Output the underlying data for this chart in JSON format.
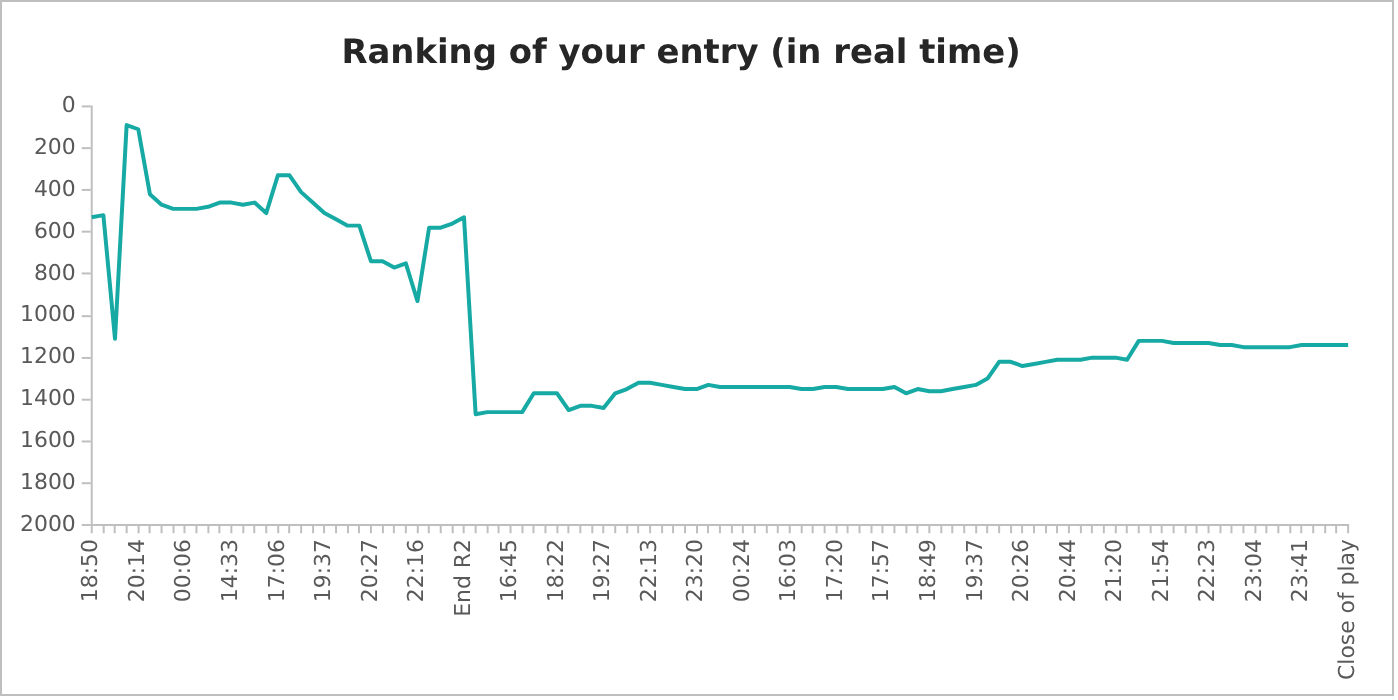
{
  "chart_data": {
    "type": "line",
    "title": "Ranking of your entry (in real time)",
    "categories": [
      "18:50",
      null,
      null,
      null,
      "20:14",
      null,
      null,
      null,
      "00:06",
      null,
      null,
      null,
      "14:33",
      null,
      null,
      null,
      "17:06",
      null,
      null,
      null,
      "19:37",
      null,
      null,
      null,
      "20:27",
      null,
      null,
      null,
      "22:16",
      null,
      null,
      null,
      "End R2",
      null,
      null,
      null,
      "16:45",
      null,
      null,
      null,
      "18:22",
      null,
      null,
      null,
      "19:27",
      null,
      null,
      null,
      "22:13",
      null,
      null,
      null,
      "23:20",
      null,
      null,
      null,
      "00:24",
      null,
      null,
      null,
      "16:03",
      null,
      null,
      null,
      "17:20",
      null,
      null,
      null,
      "17:57",
      null,
      null,
      null,
      "18:49",
      null,
      null,
      null,
      "19:37",
      null,
      null,
      null,
      "20:26",
      null,
      null,
      null,
      "20:44",
      null,
      null,
      null,
      "21:20",
      null,
      null,
      null,
      "21:54",
      null,
      null,
      null,
      "22:23",
      null,
      null,
      null,
      "23:04",
      null,
      null,
      null,
      "23:41",
      null,
      null,
      null,
      "Close of play"
    ],
    "series": [
      {
        "color": "#17aaa5",
        "values": [
          530,
          520,
          1110,
          90,
          110,
          420,
          470,
          490,
          490,
          490,
          480,
          460,
          460,
          470,
          460,
          510,
          330,
          330,
          410,
          460,
          510,
          540,
          570,
          570,
          740,
          740,
          770,
          750,
          930,
          580,
          580,
          560,
          530,
          1470,
          1460,
          1460,
          1460,
          1460,
          1370,
          1370,
          1370,
          1450,
          1430,
          1430,
          1440,
          1370,
          1350,
          1320,
          1320,
          1330,
          1340,
          1350,
          1350,
          1330,
          1340,
          1340,
          1340,
          1340,
          1340,
          1340,
          1340,
          1350,
          1350,
          1340,
          1340,
          1350,
          1350,
          1350,
          1350,
          1340,
          1370,
          1350,
          1360,
          1360,
          1350,
          1340,
          1330,
          1300,
          1220,
          1220,
          1240,
          1230,
          1220,
          1210,
          1210,
          1210,
          1200,
          1200,
          1200,
          1210,
          1120,
          1120,
          1120,
          1130,
          1130,
          1130,
          1130,
          1140,
          1140,
          1150,
          1150,
          1150,
          1150,
          1150,
          1140,
          1140,
          1140,
          1140,
          1140
        ]
      }
    ],
    "ylim": [
      2000,
      0
    ],
    "yticks": [
      0,
      200,
      400,
      600,
      800,
      1000,
      1200,
      1400,
      1600,
      1800,
      2000
    ],
    "grid": false,
    "legend": false,
    "marker": "none",
    "line_style": "solid"
  }
}
